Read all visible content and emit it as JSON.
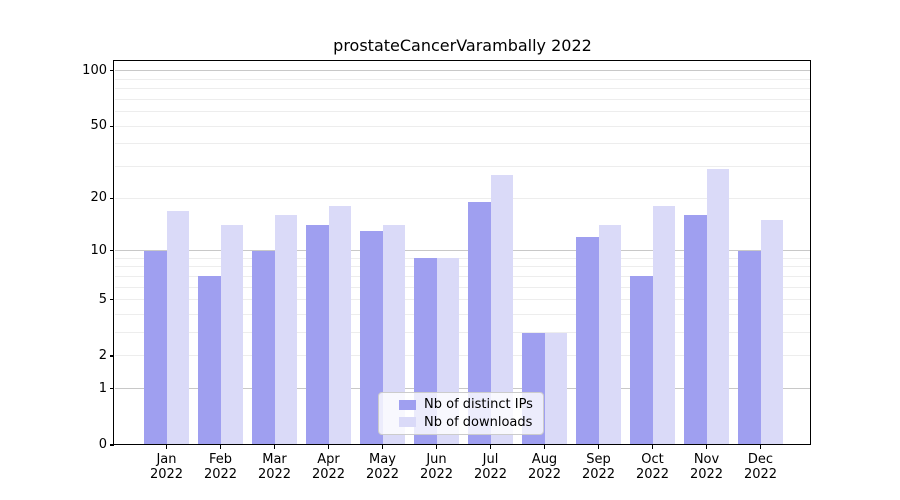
{
  "chart_data": {
    "type": "bar",
    "title": "prostateCancerVarambally 2022",
    "year": "2022",
    "categories": [
      "Jan",
      "Feb",
      "Mar",
      "Apr",
      "May",
      "Jun",
      "Jul",
      "Aug",
      "Sep",
      "Oct",
      "Nov",
      "Dec"
    ],
    "series": [
      {
        "name": "Nb of distinct IPs",
        "key": "distinct-ips",
        "color": "#9f9ff0",
        "values": [
          10,
          7,
          10,
          14,
          13,
          9,
          19,
          3,
          12,
          7,
          16,
          10
        ]
      },
      {
        "name": "Nb of downloads",
        "key": "downloads",
        "color": "#dadaf8",
        "values": [
          17,
          14,
          16,
          18,
          14,
          9,
          27,
          3,
          14,
          18,
          29,
          15
        ]
      }
    ],
    "y_axis": {
      "scale": "log1p",
      "ylim": [
        0,
        113
      ],
      "labeled_ticks": [
        0,
        1,
        2,
        5,
        10,
        20,
        50,
        100
      ],
      "major_gridlines": [
        1,
        10,
        100
      ],
      "minor_gridlines": [
        2,
        3,
        4,
        5,
        6,
        7,
        8,
        9,
        20,
        30,
        40,
        50,
        60,
        70,
        80,
        90
      ]
    },
    "legend": {
      "position": "lower center"
    },
    "grid": true,
    "colors": {
      "major_grid": "#c8c8c8",
      "minor_grid": "#ededed",
      "spine": "#000000"
    }
  }
}
